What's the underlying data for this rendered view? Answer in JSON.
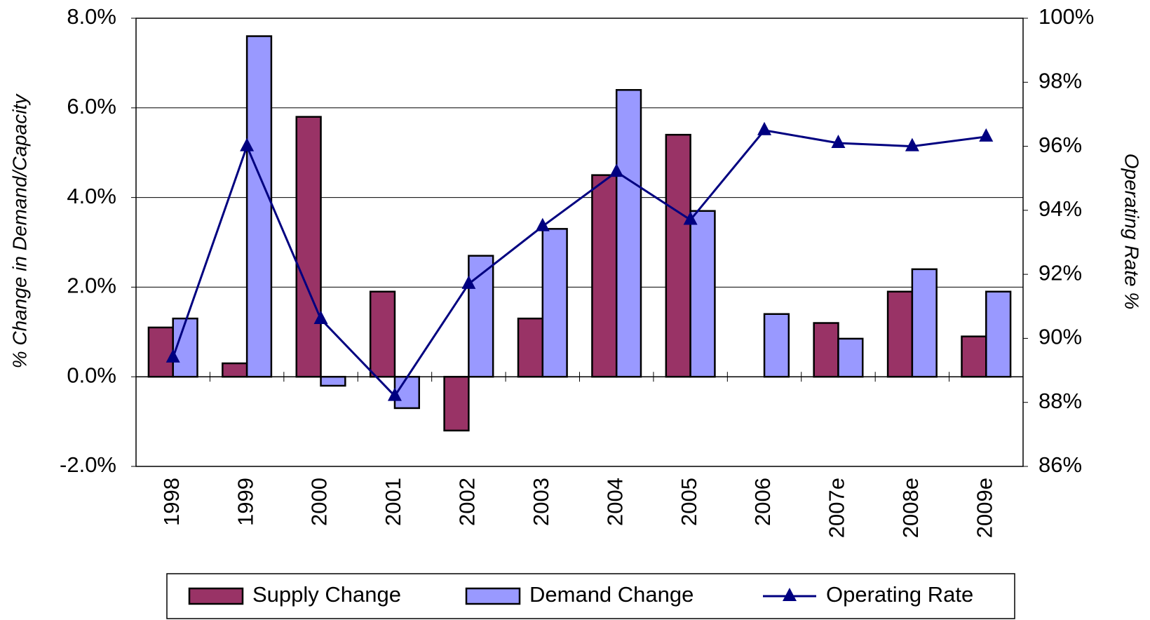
{
  "chart_data": {
    "type": "bar_line",
    "y_axis_label": "% Change in Demand/Capacity",
    "y2_axis_label": "Operating Rate %",
    "categories": [
      "1998",
      "1999",
      "2000",
      "2001",
      "2002",
      "2003",
      "2004",
      "2005",
      "2006",
      "2007e",
      "2008e",
      "2009e"
    ],
    "series": [
      {
        "name": "Supply Change",
        "color": "#993366",
        "type": "bar",
        "values": [
          1.1,
          0.3,
          5.8,
          1.9,
          -1.2,
          1.3,
          4.5,
          5.4,
          null,
          1.2,
          1.9,
          0.9
        ]
      },
      {
        "name": "Demand Change",
        "color": "#9999ff",
        "type": "bar",
        "values": [
          1.3,
          7.6,
          -0.2,
          -0.7,
          2.7,
          3.3,
          6.4,
          3.7,
          1.4,
          0.85,
          2.4,
          1.9
        ]
      },
      {
        "name": "Operating Rate",
        "color": "#000080",
        "type": "line",
        "axis": "y2",
        "values": [
          89.4,
          96.0,
          90.6,
          88.2,
          91.7,
          93.5,
          95.2,
          93.7,
          96.5,
          96.1,
          96.0,
          96.3
        ]
      }
    ],
    "ylim": [
      -2,
      8
    ],
    "yticks": [
      {
        "value": -2,
        "label": "-2.0%"
      },
      {
        "value": 0,
        "label": "0.0%"
      },
      {
        "value": 2,
        "label": "2.0%"
      },
      {
        "value": 4,
        "label": "4.0%"
      },
      {
        "value": 6,
        "label": "6.0%"
      },
      {
        "value": 8,
        "label": "8.0%"
      }
    ],
    "y2lim": [
      86,
      100
    ],
    "y2ticks": [
      {
        "value": 86,
        "label": "86%"
      },
      {
        "value": 88,
        "label": "88%"
      },
      {
        "value": 90,
        "label": "90%"
      },
      {
        "value": 92,
        "label": "92%"
      },
      {
        "value": 94,
        "label": "94%"
      },
      {
        "value": 96,
        "label": "96%"
      },
      {
        "value": 98,
        "label": "98%"
      },
      {
        "value": 100,
        "label": "100%"
      }
    ],
    "grid": true,
    "legend": "bottom"
  }
}
